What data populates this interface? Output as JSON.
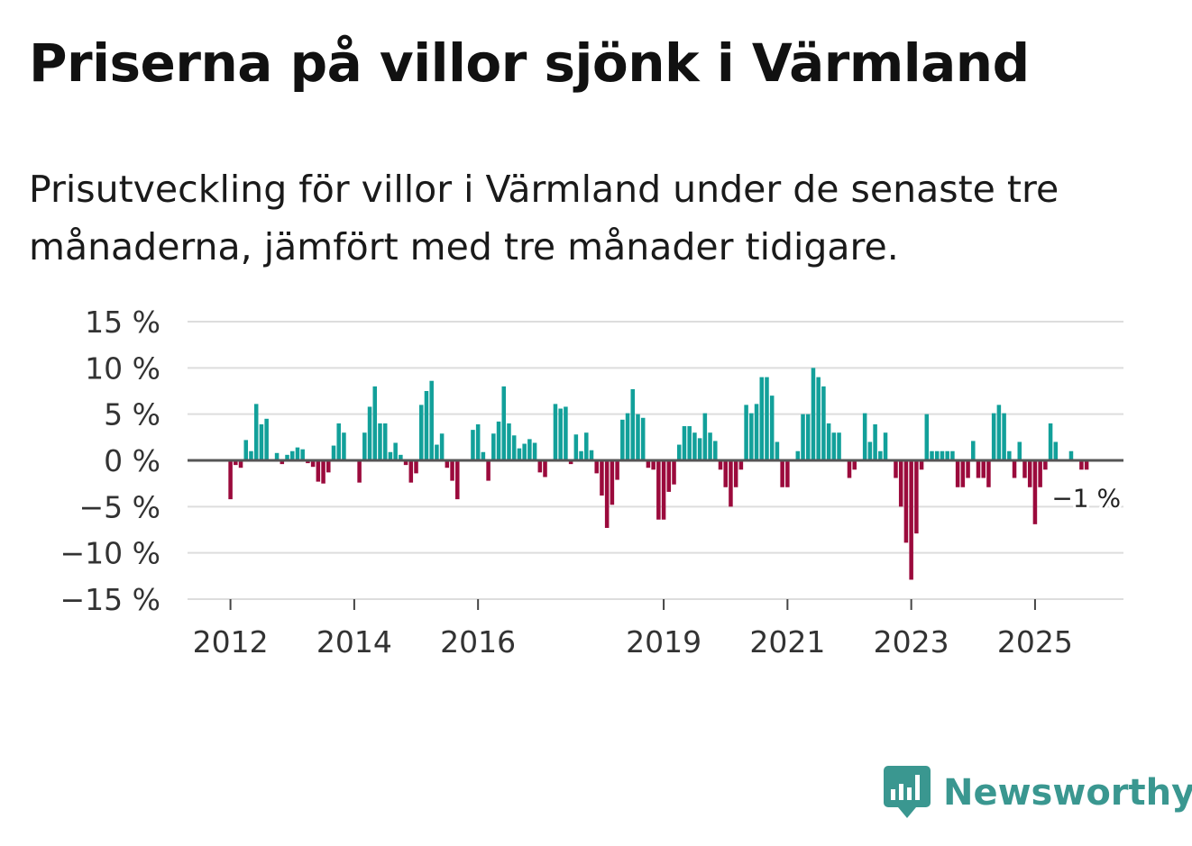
{
  "title": "Priserna på villor sjönk i Värmland",
  "subtitle": "Prisutveckling för villor i Värmland under de senaste tre månaderna, jämfört med tre månader tidigare.",
  "brand": {
    "name": "Newsworthy",
    "color": "#3a9790",
    "icon": "newsworthy-logo-icon"
  },
  "colors": {
    "positive": "#12a09a",
    "negative": "#9b0a3c",
    "grid": "#dddddd",
    "zero": "#555555"
  },
  "chart_data": {
    "type": "bar",
    "title": "Priserna på villor sjönk i Värmland",
    "xlabel": "",
    "ylabel": "",
    "ylim": [
      -15,
      15
    ],
    "y_ticks": [
      15,
      10,
      5,
      0,
      -5,
      -10,
      -15
    ],
    "y_tick_labels": [
      "15 %",
      "10 %",
      "5 %",
      "0 %",
      "−5 %",
      "−10 %",
      "−15 %"
    ],
    "x_ticks": [
      "2012",
      "2014",
      "2016",
      "2019",
      "2021",
      "2023",
      "2025"
    ],
    "start": "2012-01",
    "frequency": "monthly",
    "values": [
      -4.2,
      -0.5,
      -0.8,
      2.2,
      1.0,
      6.1,
      3.9,
      4.5,
      0.0,
      0.8,
      -0.4,
      0.6,
      1.0,
      1.4,
      1.2,
      -0.3,
      -0.7,
      -2.3,
      -2.5,
      -1.3,
      1.6,
      4.0,
      3.0,
      0.0,
      0.0,
      -2.4,
      3.0,
      5.8,
      8.0,
      4.0,
      4.0,
      0.9,
      1.9,
      0.6,
      -0.5,
      -2.4,
      -1.4,
      6.0,
      7.5,
      8.6,
      1.7,
      2.9,
      -0.8,
      -2.2,
      -4.2,
      0.0,
      0.0,
      3.3,
      3.9,
      0.9,
      -2.2,
      2.9,
      4.2,
      8.0,
      4.0,
      2.7,
      1.3,
      1.8,
      2.3,
      1.9,
      -1.3,
      -1.8,
      0.0,
      6.1,
      5.6,
      5.8,
      -0.4,
      2.8,
      1.0,
      3.0,
      1.1,
      -1.4,
      -3.8,
      -7.3,
      -4.8,
      -2.1,
      4.4,
      5.1,
      7.7,
      5.0,
      4.6,
      -0.8,
      -1.0,
      -6.4,
      -6.4,
      -3.4,
      -2.6,
      1.7,
      3.7,
      3.7,
      3.0,
      2.4,
      5.1,
      3.0,
      2.1,
      -1.0,
      -2.9,
      -5.0,
      -2.9,
      -1.0,
      6.0,
      5.1,
      6.1,
      9.0,
      9.0,
      7.0,
      2.0,
      -2.9,
      -2.9,
      0.0,
      1.0,
      5.0,
      5.0,
      10.0,
      9.0,
      8.0,
      4.0,
      3.0,
      3.0,
      0.0,
      -1.9,
      -1.0,
      0.0,
      5.1,
      2.0,
      3.9,
      1.0,
      3.0,
      0.0,
      -1.9,
      -5.0,
      -8.9,
      -12.9,
      -7.9,
      -1.0,
      5.0,
      1.0,
      1.0,
      1.0,
      1.0,
      1.0,
      -2.9,
      -2.9,
      -1.9,
      2.1,
      -1.9,
      -1.9,
      -2.9,
      5.1,
      6.0,
      5.1,
      1.0,
      -1.9,
      2.0,
      -1.9,
      -2.9,
      -6.9,
      -2.9,
      -1.0,
      4.0,
      2.0,
      0.0,
      0.0,
      1.0,
      0.0,
      -1.0,
      -1.0
    ],
    "annotation": "−1 %"
  }
}
